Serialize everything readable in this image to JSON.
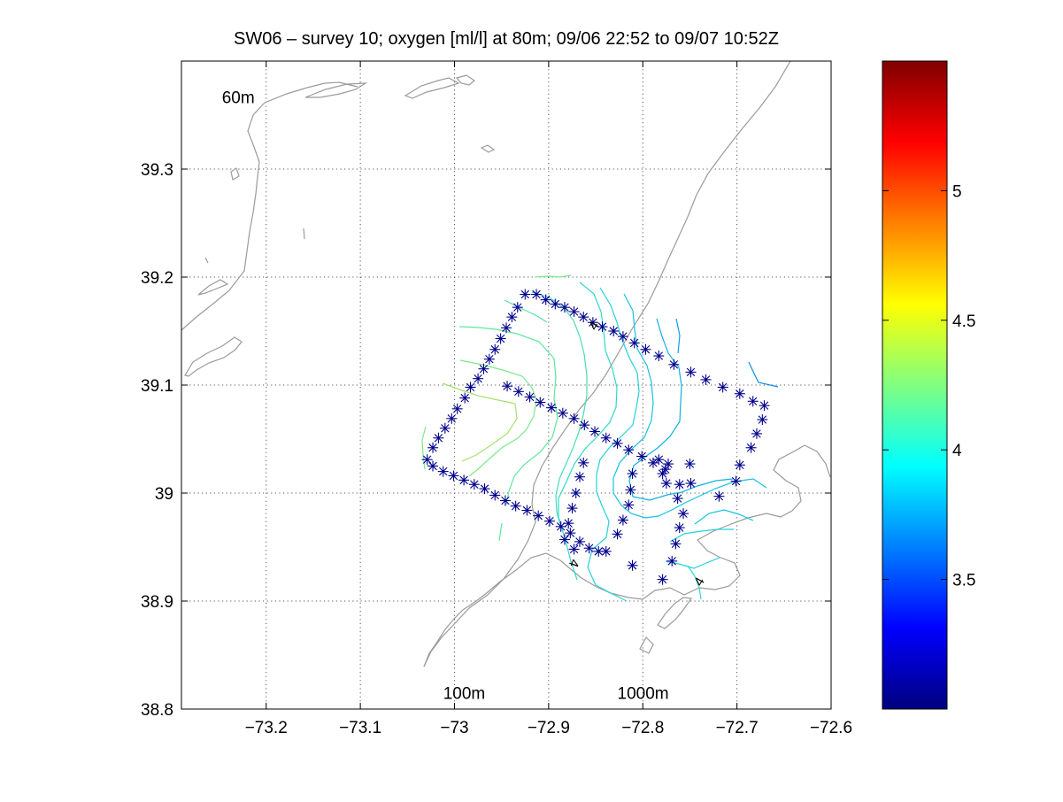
{
  "chart_data": {
    "type": "scatter",
    "title": "SW06 – survey 10; oxygen [ml/l] at 80m; 09/06 22:52 to 09/07 10:52Z",
    "xlabel": "",
    "ylabel": "",
    "xlim": [
      -73.29,
      -72.6
    ],
    "ylim": [
      38.8,
      39.4
    ],
    "xticks": [
      -73.2,
      -73.1,
      -73.0,
      -72.9,
      -72.8,
      -72.7,
      -72.6
    ],
    "xtick_labels": [
      "−73.2",
      "−73.1",
      "−73",
      "−72.9",
      "−72.8",
      "−72.7",
      "−72.6"
    ],
    "yticks": [
      38.8,
      38.9,
      39.0,
      39.1,
      39.2,
      39.3
    ],
    "ytick_labels": [
      "38.8",
      "38.9",
      "39",
      "39.1",
      "39.2",
      "39.3"
    ],
    "grid": true,
    "colorbar": {
      "colormap": "jet",
      "range": [
        3.0,
        5.5
      ],
      "ticks": [
        3.5,
        4.0,
        4.5,
        5.0
      ],
      "tick_labels": [
        "3.5",
        "4",
        "4.5",
        "5"
      ]
    },
    "annotations": [
      {
        "text": "60m",
        "x": -73.247,
        "y": 39.367
      },
      {
        "text": "100m",
        "x": -73.012,
        "y": 38.815
      },
      {
        "text": "1000m",
        "x": -72.827,
        "y": 38.815
      }
    ],
    "contour_labels": [
      {
        "text": "4",
        "x": -72.852,
        "y": 39.155,
        "angle": -60
      },
      {
        "text": "4",
        "x": -72.873,
        "y": 38.935,
        "angle": 110
      },
      {
        "text": "4",
        "x": -72.74,
        "y": 38.918,
        "angle": -60
      }
    ],
    "series": [
      {
        "marker": "asterisk",
        "color": "#00008b",
        "points": [
          [
            -73.029,
            39.031
          ],
          [
            -73.023,
            39.042
          ],
          [
            -73.017,
            39.051
          ],
          [
            -73.01,
            39.06
          ],
          [
            -73.003,
            39.069
          ],
          [
            -72.997,
            39.078
          ],
          [
            -72.989,
            39.088
          ],
          [
            -72.983,
            39.098
          ],
          [
            -72.975,
            39.106
          ],
          [
            -72.969,
            39.115
          ],
          [
            -72.963,
            39.124
          ],
          [
            -72.957,
            39.133
          ],
          [
            -72.951,
            39.143
          ],
          [
            -72.945,
            39.153
          ],
          [
            -72.939,
            39.163
          ],
          [
            -72.933,
            39.172
          ],
          [
            -72.925,
            39.184
          ],
          [
            -72.913,
            39.184
          ],
          [
            -72.903,
            39.179
          ],
          [
            -72.893,
            39.175
          ],
          [
            -72.883,
            39.172
          ],
          [
            -72.873,
            39.168
          ],
          [
            -72.863,
            39.163
          ],
          [
            -72.853,
            39.158
          ],
          [
            -72.843,
            39.154
          ],
          [
            -72.831,
            39.15
          ],
          [
            -72.821,
            39.145
          ],
          [
            -72.809,
            39.139
          ],
          [
            -72.797,
            39.133
          ],
          [
            -72.783,
            39.127
          ],
          [
            -72.767,
            39.119
          ],
          [
            -72.749,
            39.112
          ],
          [
            -72.733,
            39.105
          ],
          [
            -72.715,
            39.098
          ],
          [
            -72.697,
            39.092
          ],
          [
            -72.683,
            39.085
          ],
          [
            -72.671,
            39.081
          ],
          [
            -72.673,
            39.068
          ],
          [
            -72.679,
            39.055
          ],
          [
            -72.685,
            39.042
          ],
          [
            -72.697,
            39.026
          ],
          [
            -72.701,
            39.011
          ],
          [
            -72.719,
            38.997
          ],
          [
            -72.944,
            39.099
          ],
          [
            -72.932,
            39.094
          ],
          [
            -72.92,
            39.089
          ],
          [
            -72.909,
            39.084
          ],
          [
            -72.897,
            39.079
          ],
          [
            -72.885,
            39.074
          ],
          [
            -72.873,
            39.069
          ],
          [
            -72.862,
            39.063
          ],
          [
            -72.851,
            39.057
          ],
          [
            -72.839,
            39.051
          ],
          [
            -72.827,
            39.046
          ],
          [
            -72.815,
            39.04
          ],
          [
            -72.801,
            39.034
          ],
          [
            -72.789,
            39.028
          ],
          [
            -72.776,
            39.022
          ],
          [
            -73.023,
            39.025
          ],
          [
            -73.012,
            39.02
          ],
          [
            -73.001,
            39.016
          ],
          [
            -72.99,
            39.012
          ],
          [
            -72.979,
            39.008
          ],
          [
            -72.968,
            39.004
          ],
          [
            -72.957,
            38.998
          ],
          [
            -72.946,
            38.993
          ],
          [
            -72.935,
            38.988
          ],
          [
            -72.923,
            38.984
          ],
          [
            -72.911,
            38.979
          ],
          [
            -72.899,
            38.974
          ],
          [
            -72.887,
            38.969
          ],
          [
            -72.877,
            38.963
          ],
          [
            -72.867,
            38.955
          ],
          [
            -72.857,
            38.949
          ],
          [
            -72.847,
            38.946
          ],
          [
            -72.839,
            38.946
          ],
          [
            -72.863,
            39.028
          ],
          [
            -72.867,
            39.015
          ],
          [
            -72.871,
            39.0
          ],
          [
            -72.875,
            38.986
          ],
          [
            -72.879,
            38.972
          ],
          [
            -72.883,
            38.957
          ],
          [
            -72.873,
            38.948
          ],
          [
            -72.811,
            39.018
          ],
          [
            -72.813,
            39.003
          ],
          [
            -72.815,
            38.989
          ],
          [
            -72.821,
            38.975
          ],
          [
            -72.827,
            38.962
          ],
          [
            -72.811,
            38.933
          ],
          [
            -72.783,
            39.031
          ],
          [
            -72.779,
            39.018
          ],
          [
            -72.775,
            39.009
          ],
          [
            -72.761,
            39.008
          ],
          [
            -72.763,
            38.995
          ],
          [
            -72.757,
            38.981
          ],
          [
            -72.761,
            38.968
          ],
          [
            -72.765,
            38.953
          ],
          [
            -72.769,
            38.937
          ],
          [
            -72.779,
            38.92
          ],
          [
            -72.773,
            39.027
          ],
          [
            -72.75,
            39.027
          ],
          [
            -72.749,
            39.009
          ]
        ]
      }
    ]
  }
}
